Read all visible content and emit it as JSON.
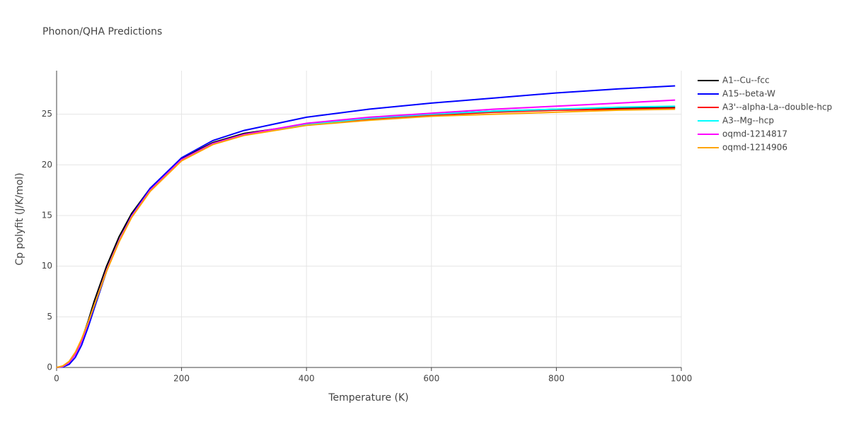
{
  "chart_data": {
    "type": "line",
    "title": "Phonon/QHA Predictions",
    "x_label": "Temperature (K)",
    "y_label": "Cp polyfit (J/K/mol)",
    "x": [
      0,
      10,
      20,
      30,
      40,
      50,
      60,
      80,
      100,
      120,
      150,
      200,
      250,
      300,
      400,
      500,
      600,
      700,
      800,
      900,
      990
    ],
    "series": [
      {
        "name": "A1--Cu--fcc",
        "color": "#000000",
        "values": [
          0,
          0.1,
          0.5,
          1.3,
          2.7,
          4.5,
          6.5,
          10.0,
          12.9,
          15.2,
          17.7,
          20.6,
          22.2,
          23.1,
          24.0,
          24.6,
          25.0,
          25.3,
          25.5,
          25.6,
          25.7
        ]
      },
      {
        "name": "A15--beta-W",
        "color": "#0000ff",
        "values": [
          0,
          0.05,
          0.3,
          1.0,
          2.2,
          3.9,
          5.8,
          9.5,
          12.5,
          15.0,
          17.7,
          20.7,
          22.4,
          23.4,
          24.7,
          25.5,
          26.1,
          26.6,
          27.1,
          27.5,
          27.8
        ]
      },
      {
        "name": "A3'--alpha-La--double-hcp",
        "color": "#ff0000",
        "values": [
          0,
          0.1,
          0.5,
          1.3,
          2.6,
          4.3,
          6.1,
          9.6,
          12.5,
          14.9,
          17.5,
          20.5,
          22.1,
          23.0,
          24.0,
          24.5,
          24.9,
          25.2,
          25.4,
          25.5,
          25.6
        ]
      },
      {
        "name": "A3--Mg--hcp",
        "color": "#00ffff",
        "values": [
          0,
          0.1,
          0.5,
          1.3,
          2.6,
          4.3,
          6.1,
          9.6,
          12.5,
          14.9,
          17.5,
          20.5,
          22.1,
          23.0,
          24.0,
          24.6,
          25.0,
          25.3,
          25.5,
          25.7,
          25.8
        ]
      },
      {
        "name": "oqmd-1214817",
        "color": "#ff00ff",
        "values": [
          0,
          0.1,
          0.5,
          1.3,
          2.6,
          4.3,
          6.1,
          9.6,
          12.5,
          14.9,
          17.5,
          20.5,
          22.1,
          23.0,
          24.1,
          24.7,
          25.1,
          25.5,
          25.8,
          26.1,
          26.4
        ]
      },
      {
        "name": "oqmd-1214906",
        "color": "#ffa500",
        "values": [
          0,
          0.15,
          0.6,
          1.5,
          2.8,
          4.4,
          6.1,
          9.5,
          12.4,
          14.8,
          17.4,
          20.4,
          22.0,
          22.9,
          23.9,
          24.4,
          24.8,
          25.0,
          25.2,
          25.4,
          25.5
        ]
      }
    ],
    "xlim": [
      0,
      1000
    ],
    "xticks": [
      0,
      200,
      400,
      600,
      800,
      1000
    ],
    "ylim": [
      0,
      29.3
    ],
    "yticks": [
      0,
      5,
      10,
      15,
      20,
      25
    ],
    "grid": true
  }
}
